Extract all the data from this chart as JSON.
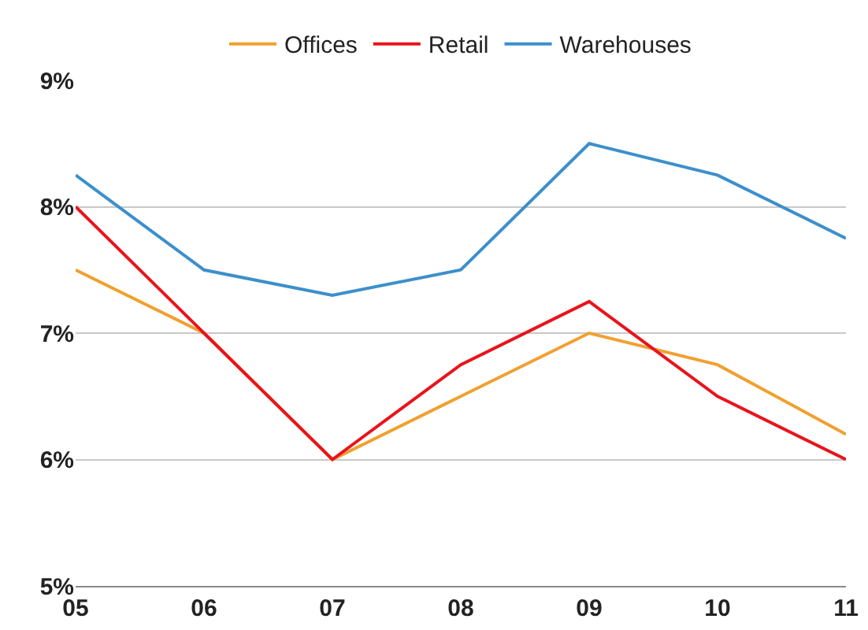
{
  "chart_data": {
    "type": "line",
    "categories": [
      "05",
      "06",
      "07",
      "08",
      "09",
      "10",
      "11"
    ],
    "series": [
      {
        "name": "Offices",
        "color": "#f0a030",
        "values": [
          7.5,
          7.0,
          6.0,
          6.5,
          7.0,
          6.75,
          6.2
        ]
      },
      {
        "name": "Retail",
        "color": "#e8141c",
        "values": [
          8.0,
          7.0,
          6.0,
          6.75,
          7.25,
          6.5,
          6.0
        ]
      },
      {
        "name": "Warehouses",
        "color": "#3c8fcb",
        "values": [
          8.25,
          7.5,
          7.3,
          7.5,
          8.5,
          8.25,
          7.75
        ]
      }
    ],
    "ylim": [
      5,
      9
    ],
    "yticks": [
      {
        "value": 5,
        "label": "5%"
      },
      {
        "value": 6,
        "label": "6%"
      },
      {
        "value": 7,
        "label": "7%"
      },
      {
        "value": 8,
        "label": "8%"
      },
      {
        "value": 9,
        "label": "9%"
      }
    ],
    "grid": "y",
    "legend": "top",
    "marker": "none",
    "line_style": "solid"
  }
}
